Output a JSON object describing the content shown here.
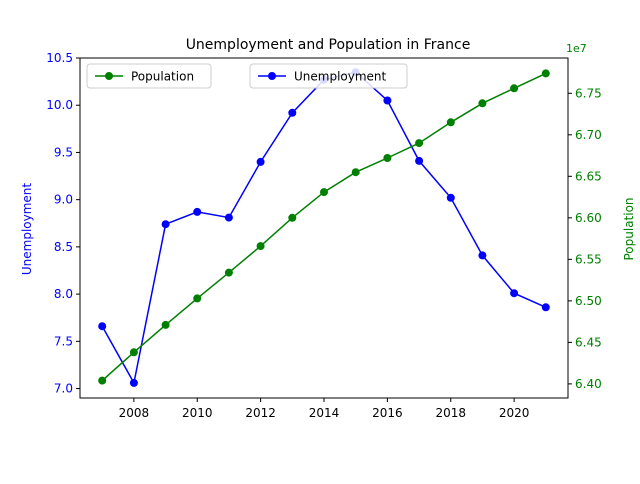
{
  "chart_data": {
    "type": "line",
    "title": "Unemployment and Population in France",
    "x": [
      2007,
      2008,
      2009,
      2010,
      2011,
      2012,
      2013,
      2014,
      2015,
      2016,
      2017,
      2018,
      2019,
      2020,
      2021
    ],
    "x_ticks": [
      2008,
      2010,
      2012,
      2014,
      2016,
      2018,
      2020
    ],
    "x_tick_labels": [
      "2008",
      "2010",
      "2012",
      "2014",
      "2016",
      "2018",
      "2020"
    ],
    "xlim": [
      2006.3,
      2021.7
    ],
    "grid": false,
    "left_axis": {
      "label": "Unemployment",
      "color": "#0000ff",
      "ylim": [
        6.9,
        10.5
      ],
      "ticks": [
        7.0,
        7.5,
        8.0,
        8.5,
        9.0,
        9.5,
        10.0,
        10.5
      ],
      "tick_labels": [
        "7.0",
        "7.5",
        "8.0",
        "8.5",
        "9.0",
        "9.5",
        "10.0",
        "10.5"
      ]
    },
    "right_axis": {
      "label": "Population",
      "color": "#008000",
      "offset_text": "1e7",
      "ylim": [
        6.383,
        6.7925
      ],
      "ticks": [
        6.4,
        6.45,
        6.5,
        6.55,
        6.6,
        6.65,
        6.7,
        6.75
      ],
      "tick_labels": [
        "6.40",
        "6.45",
        "6.50",
        "6.55",
        "6.60",
        "6.65",
        "6.70",
        "6.75"
      ]
    },
    "series": [
      {
        "name": "Unemployment",
        "axis": "left",
        "color": "#0000ff",
        "values": [
          7.66,
          7.06,
          8.74,
          8.87,
          8.81,
          9.4,
          9.92,
          10.27,
          10.35,
          10.05,
          9.41,
          9.02,
          8.41,
          8.01,
          7.86
        ]
      },
      {
        "name": "Population",
        "axis": "right",
        "color": "#008000",
        "values": [
          6.404,
          6.438,
          6.471,
          6.503,
          6.534,
          6.566,
          6.6,
          6.631,
          6.655,
          6.672,
          6.69,
          6.715,
          6.738,
          6.756,
          6.774
        ]
      }
    ],
    "legends": [
      {
        "position": "upper-left",
        "entries": [
          "Population"
        ]
      },
      {
        "position": "upper-center",
        "entries": [
          "Unemployment"
        ]
      }
    ]
  }
}
